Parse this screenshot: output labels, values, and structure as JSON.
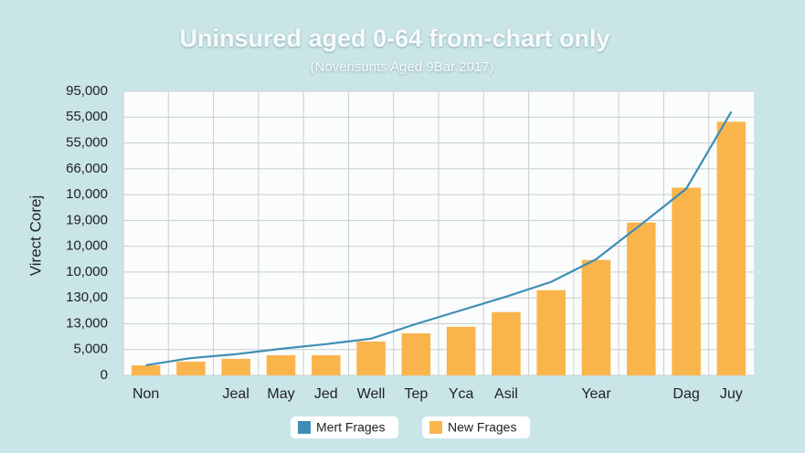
{
  "chart_data": {
    "type": "bar",
    "title": "Uninsured aged 0-64 from-chart only",
    "subtitle": "(Noverisunts Aged 9Bar 2017)",
    "y_label": "Virect Corej",
    "categories": [
      "Non",
      null,
      "Jeal",
      "May",
      "Jed",
      "Well",
      "Tep",
      "Yca",
      "Asil",
      null,
      "Year",
      null,
      "Dag",
      "Juy"
    ],
    "series": [
      {
        "name": "Mert Frages",
        "type": "line",
        "color": "#3f8db5",
        "values": [
          0.39,
          0.67,
          0.82,
          1.03,
          1.21,
          1.42,
          1.99,
          2.52,
          3.05,
          3.62,
          4.5,
          5.85,
          7.23,
          10.21
        ]
      },
      {
        "name": "New Frages",
        "type": "bar",
        "color": "#f9b54c",
        "values": [
          0.39,
          0.53,
          0.64,
          0.78,
          0.78,
          1.31,
          1.63,
          1.88,
          2.45,
          3.3,
          4.47,
          5.92,
          7.27,
          9.82
        ]
      }
    ],
    "ylim": [
      0,
      11
    ],
    "yticks": [
      0,
      {
        "value": 1,
        "label": "5,000"
      },
      {
        "value": 2,
        "label": "13,000"
      },
      {
        "value": 3,
        "label": "130,00"
      },
      {
        "value": 4,
        "label": "10,000"
      },
      {
        "value": 5,
        "label": "10,000"
      },
      {
        "value": 6,
        "label": "19,000"
      },
      {
        "value": 7,
        "label": "10,000"
      },
      {
        "value": 8,
        "label": "66,000"
      },
      {
        "value": 9,
        "label": "55,000"
      },
      {
        "value": 10,
        "label": "55,000"
      },
      {
        "value": 11,
        "label": "95,000"
      }
    ],
    "grid": true
  }
}
